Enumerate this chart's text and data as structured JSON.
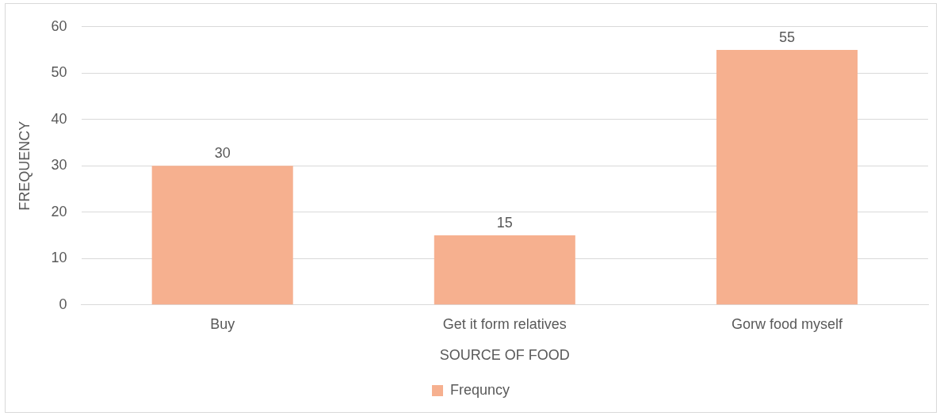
{
  "chart_data": {
    "type": "bar",
    "xlabel": "SOURCE OF FOOD",
    "ylabel": "FREQUENCY",
    "categories": [
      "Buy",
      "Get it form relatives",
      "Gorw food myself"
    ],
    "series": [
      {
        "name": "Frequncy",
        "color": "#f6b08f",
        "values": [
          30,
          15,
          55
        ]
      }
    ],
    "ylim": [
      0,
      60
    ],
    "yticks": [
      0,
      10,
      20,
      30,
      40,
      50,
      60
    ],
    "grid": "y",
    "legend": "bottom",
    "data_labels": true
  }
}
